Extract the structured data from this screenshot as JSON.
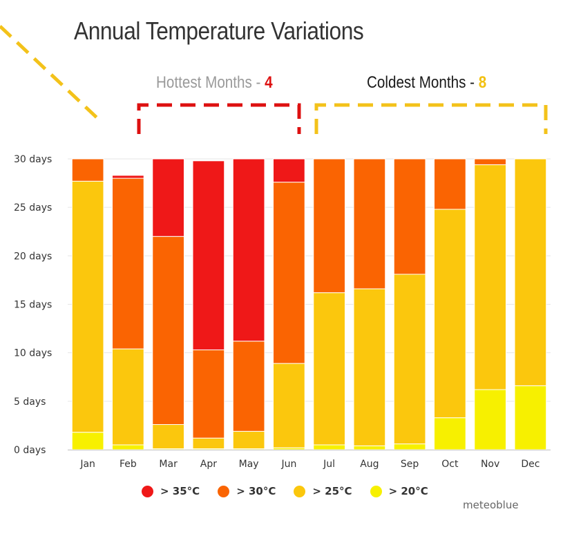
{
  "title": "Annual Temperature Variations",
  "hottest": {
    "label": "Hottest Months",
    "separator": " - ",
    "count": "4",
    "color": "#dd1010"
  },
  "coldest": {
    "label": "Coldest Months",
    "separator": " - ",
    "count": "8",
    "color": "#f2c010"
  },
  "credit": "meteoblue",
  "chart_data": {
    "type": "bar",
    "stacked": true,
    "title": "Annual Temperature Variations",
    "categories": [
      "Jan",
      "Feb",
      "Mar",
      "Apr",
      "May",
      "Jun",
      "Jul",
      "Aug",
      "Sep",
      "Oct",
      "Nov",
      "Dec"
    ],
    "ylim": [
      0,
      30
    ],
    "yticks": [
      0,
      5,
      10,
      15,
      20,
      25,
      30
    ],
    "ytick_labels": [
      "0 days",
      "5 days",
      "10 days",
      "15 days",
      "20 days",
      "25 days",
      "30 days"
    ],
    "series": [
      {
        "name": "> 20°C",
        "color": "#f7f000",
        "values": [
          1.8,
          0.5,
          0.1,
          0.1,
          0.1,
          0.2,
          0.5,
          0.4,
          0.6,
          3.3,
          6.2,
          6.6
        ]
      },
      {
        "name": "> 25°C",
        "color": "#fbc70d",
        "values": [
          25.9,
          9.9,
          2.5,
          1.1,
          1.8,
          8.7,
          15.7,
          16.2,
          17.5,
          21.5,
          23.2,
          23.4
        ]
      },
      {
        "name": "> 30°C",
        "color": "#fa6402",
        "values": [
          2.3,
          17.6,
          19.4,
          9.1,
          9.3,
          18.7,
          13.8,
          13.4,
          11.9,
          5.2,
          0.6,
          0.0
        ]
      },
      {
        "name": "> 35°C",
        "color": "#ef1818",
        "values": [
          0.0,
          0.3,
          8.0,
          19.5,
          18.8,
          2.4,
          0.0,
          0.0,
          0.0,
          0.0,
          0.0,
          0.0
        ]
      }
    ],
    "legend": [
      {
        "label": "> 35°C",
        "color": "#ef1818"
      },
      {
        "label": "> 30°C",
        "color": "#fa6402"
      },
      {
        "label": "> 25°C",
        "color": "#fbc70d"
      },
      {
        "label": "> 20°C",
        "color": "#f7f000"
      }
    ],
    "grid": true,
    "legend_position": "bottom"
  }
}
